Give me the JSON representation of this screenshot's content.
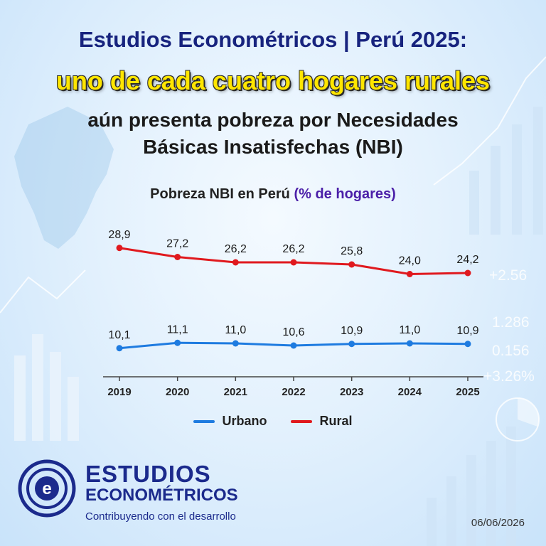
{
  "header": {
    "line1": "Estudios Econométricos | Perú 2025:",
    "line2": "uno de cada cuatro hogares rurales",
    "line3a": "aún presenta pobreza por Necesidades",
    "line3b": "Básicas Insatisfechas (NBI)"
  },
  "chart_title": {
    "main": "Pobreza NBI en Perú",
    "accent": "(% de hogares)"
  },
  "chart_data": {
    "type": "line",
    "title": "Pobreza NBI en Perú (% de hogares)",
    "categories": [
      "2019",
      "2020",
      "2021",
      "2022",
      "2023",
      "2024",
      "2025"
    ],
    "series": [
      {
        "name": "Urbano",
        "color": "#1e7be0",
        "values": [
          10.1,
          11.1,
          11.0,
          10.6,
          10.9,
          11.0,
          10.9
        ],
        "labels": [
          "10,1",
          "11,1",
          "11,0",
          "10,6",
          "10,9",
          "11,0",
          "10,9"
        ]
      },
      {
        "name": "Rural",
        "color": "#e0191e",
        "values": [
          28.9,
          27.2,
          26.2,
          26.2,
          25.8,
          24.0,
          24.2
        ],
        "labels": [
          "28,9",
          "27,2",
          "26,2",
          "26,2",
          "25,8",
          "24,0",
          "24,2"
        ]
      }
    ],
    "ylim": [
      0,
      32
    ],
    "grid": false,
    "legend": "bottom"
  },
  "legend": {
    "urbano": "Urbano",
    "rural": "Rural"
  },
  "bg_numbers": [
    "+2.56",
    "1.286",
    "0.156",
    "+3.26%"
  ],
  "logo": {
    "name1": "ESTUDIOS",
    "name2": "ECONOMÉTRICOS",
    "tagline": "Contribuyendo con el desarrollo",
    "mark_letter": "e",
    "color": "#1b2a8c"
  },
  "date": "06/06/2026"
}
